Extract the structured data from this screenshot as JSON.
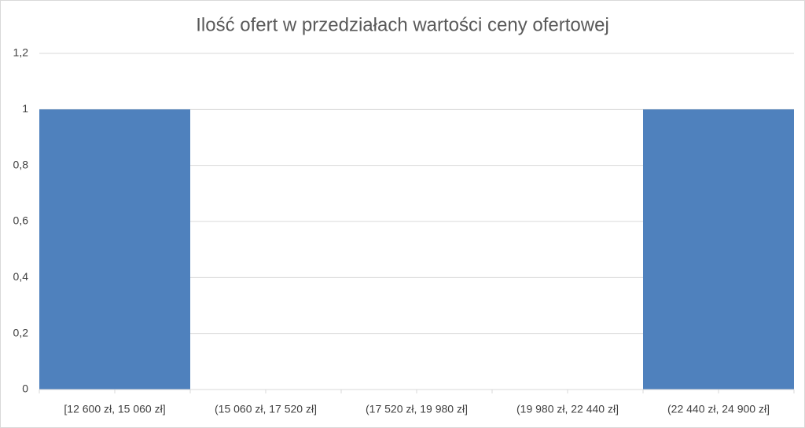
{
  "chart_data": {
    "type": "bar",
    "title": "Ilość ofert w przedziałach wartości ceny ofertowej",
    "categories": [
      "[12 600 zł, 15 060 zł]",
      "(15 060 zł, 17 520 zł]",
      "(17 520 zł, 19 980 zł]",
      "(19 980 zł, 22 440 zł]",
      "(22 440 zł, 24 900 zł]"
    ],
    "values": [
      1,
      0,
      0,
      0,
      1
    ],
    "color": "#4f81bd",
    "ylim": [
      0,
      1.2
    ],
    "yticks": [
      0,
      {
        "value": 0.2,
        "label": "0,2"
      },
      {
        "value": 0.4,
        "label": "0,4"
      },
      {
        "value": 0.6,
        "label": "0,6"
      },
      {
        "value": 0.8,
        "label": "0,8"
      },
      1,
      {
        "value": 1.2,
        "label": "1,2"
      }
    ],
    "grid": true
  }
}
